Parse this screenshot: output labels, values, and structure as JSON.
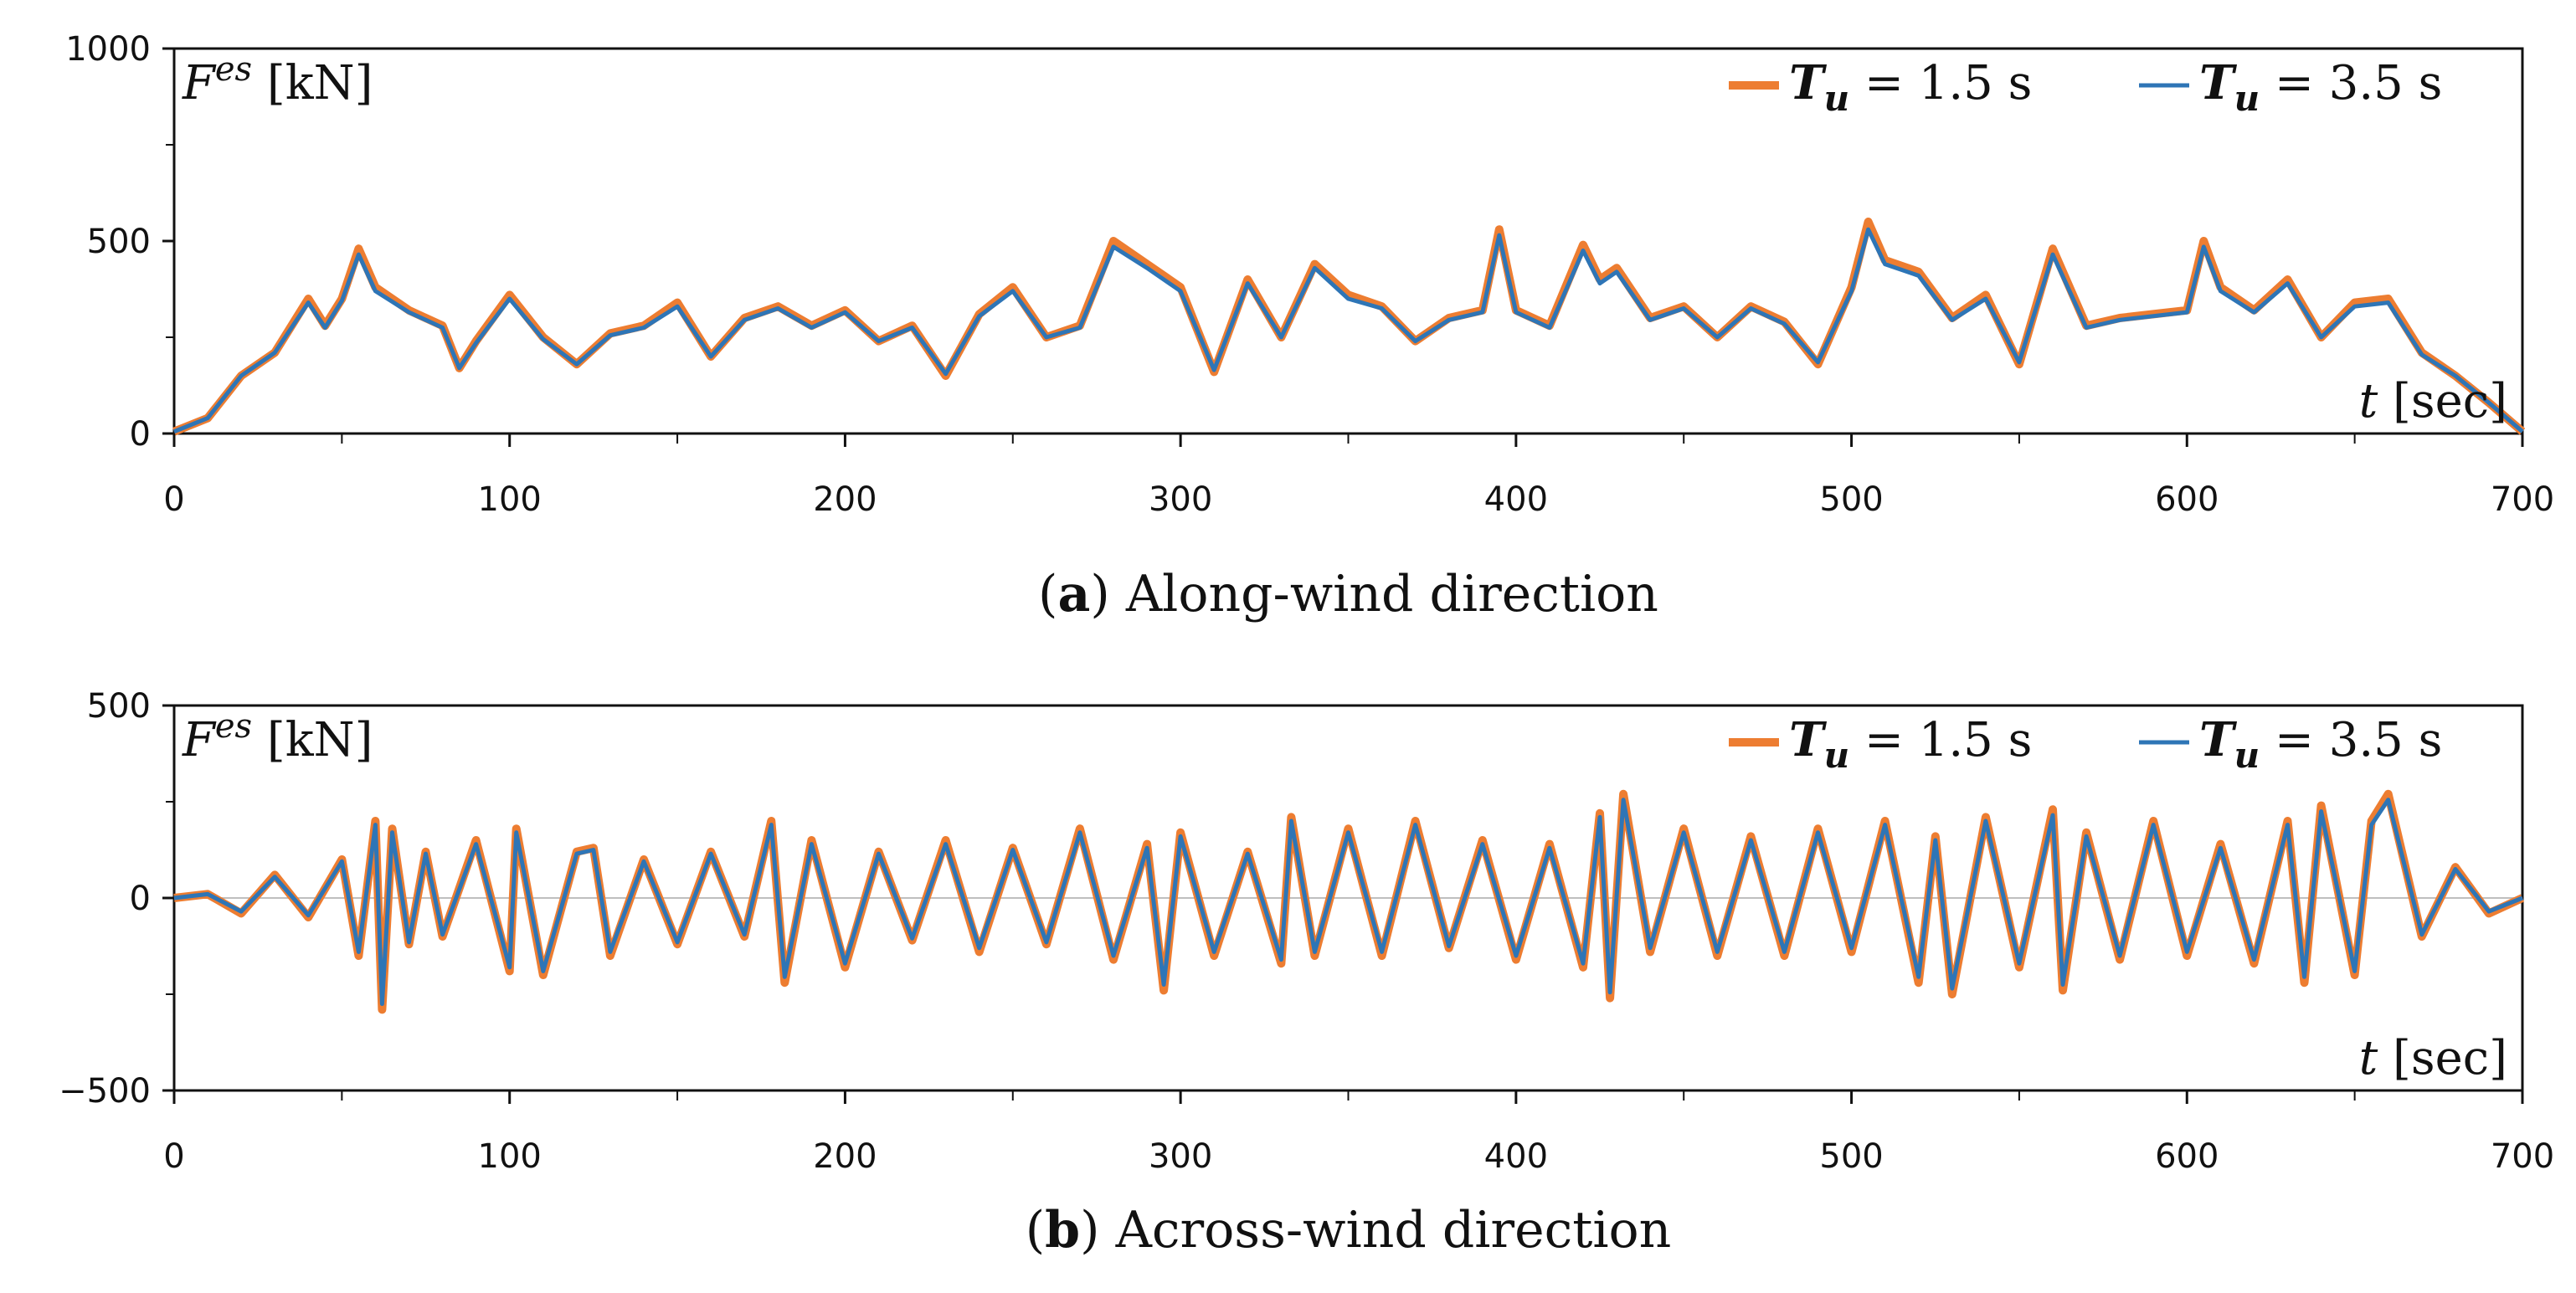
{
  "chart_data": [
    {
      "type": "line",
      "panel": "a",
      "caption_letter": "a",
      "caption_open": "(",
      "caption_close": ")",
      "caption_text": " Along-wind direction",
      "ylabel": {
        "symbol": "F",
        "sup": "es",
        "unit": " [kN]"
      },
      "xlabel": {
        "symbol": "t",
        "unit": " [sec]"
      },
      "xlim": [
        0,
        700
      ],
      "ylim": [
        0,
        1000
      ],
      "xticks": [
        0,
        100,
        200,
        300,
        400,
        500,
        600,
        700
      ],
      "xtick_labels": [
        "0",
        "100",
        "200",
        "300",
        "400",
        "500",
        "600",
        "700"
      ],
      "yticks": [
        0,
        500,
        1000
      ],
      "ytick_labels": [
        "0",
        "500",
        "1000"
      ],
      "grid": false,
      "legend_position": "top-right",
      "series": [
        {
          "name": "Tu = 1.5 s",
          "label_symbol": "T",
          "label_sub": "u",
          "label_text": " = 1.5 s",
          "color": "#ED7D31",
          "x": [
            0,
            10,
            20,
            30,
            40,
            45,
            50,
            55,
            60,
            70,
            80,
            85,
            90,
            100,
            110,
            120,
            130,
            140,
            150,
            160,
            170,
            180,
            190,
            200,
            210,
            220,
            230,
            240,
            250,
            260,
            270,
            280,
            290,
            300,
            310,
            320,
            330,
            340,
            350,
            360,
            370,
            380,
            390,
            395,
            400,
            410,
            420,
            425,
            430,
            440,
            450,
            460,
            470,
            480,
            490,
            500,
            505,
            510,
            520,
            530,
            540,
            550,
            560,
            570,
            580,
            590,
            600,
            605,
            610,
            620,
            630,
            640,
            650,
            660,
            670,
            680,
            690,
            700
          ],
          "values": [
            5,
            40,
            150,
            210,
            350,
            280,
            350,
            480,
            380,
            320,
            280,
            170,
            240,
            360,
            250,
            180,
            260,
            280,
            340,
            200,
            300,
            330,
            280,
            320,
            240,
            280,
            150,
            310,
            380,
            250,
            280,
            500,
            440,
            380,
            160,
            400,
            250,
            440,
            360,
            330,
            240,
            300,
            320,
            530,
            320,
            280,
            490,
            400,
            430,
            300,
            330,
            250,
            330,
            290,
            180,
            380,
            550,
            450,
            420,
            300,
            360,
            180,
            480,
            280,
            300,
            310,
            320,
            500,
            380,
            320,
            400,
            250,
            340,
            350,
            210,
            150,
            80,
            5
          ]
        },
        {
          "name": "Tu = 3.5 s",
          "label_symbol": "T",
          "label_sub": "u",
          "label_text": " = 3.5 s",
          "color": "#2E75B6",
          "x": [
            0,
            10,
            20,
            30,
            40,
            45,
            50,
            55,
            60,
            70,
            80,
            85,
            90,
            100,
            110,
            120,
            130,
            140,
            150,
            160,
            170,
            180,
            190,
            200,
            210,
            220,
            230,
            240,
            250,
            260,
            270,
            280,
            290,
            300,
            310,
            320,
            330,
            340,
            350,
            360,
            370,
            380,
            390,
            395,
            400,
            410,
            420,
            425,
            430,
            440,
            450,
            460,
            470,
            480,
            490,
            500,
            505,
            510,
            520,
            530,
            540,
            550,
            560,
            570,
            580,
            590,
            600,
            605,
            610,
            620,
            630,
            640,
            650,
            660,
            670,
            680,
            690,
            700
          ],
          "values": [
            5,
            40,
            150,
            210,
            340,
            275,
            345,
            465,
            370,
            315,
            275,
            170,
            235,
            350,
            245,
            180,
            255,
            275,
            330,
            200,
            295,
            325,
            275,
            315,
            240,
            275,
            155,
            305,
            370,
            250,
            275,
            485,
            430,
            370,
            165,
            390,
            250,
            430,
            350,
            325,
            240,
            295,
            315,
            515,
            315,
            275,
            475,
            390,
            420,
            295,
            325,
            250,
            325,
            285,
            185,
            370,
            530,
            440,
            410,
            295,
            350,
            185,
            465,
            275,
            295,
            305,
            315,
            485,
            370,
            315,
            390,
            250,
            330,
            340,
            205,
            150,
            80,
            5
          ]
        }
      ]
    },
    {
      "type": "line",
      "panel": "b",
      "caption_letter": "b",
      "caption_open": "(",
      "caption_close": ")",
      "caption_text": " Across-wind direction",
      "ylabel": {
        "symbol": "F",
        "sup": "es",
        "unit": " [kN]"
      },
      "xlabel": {
        "symbol": "t",
        "unit": " [sec]"
      },
      "xlim": [
        0,
        700
      ],
      "ylim": [
        -500,
        500
      ],
      "xticks": [
        0,
        100,
        200,
        300,
        400,
        500,
        600,
        700
      ],
      "xtick_labels": [
        "0",
        "100",
        "200",
        "300",
        "400",
        "500",
        "600",
        "700"
      ],
      "yticks": [
        -500,
        0,
        500
      ],
      "ytick_labels": [
        "−500",
        "0",
        "500"
      ],
      "grid": false,
      "legend_position": "top-right",
      "series": [
        {
          "name": "Tu = 1.5 s",
          "label_symbol": "T",
          "label_sub": "u",
          "label_text": " = 1.5 s",
          "color": "#ED7D31",
          "x": [
            0,
            10,
            20,
            30,
            40,
            50,
            55,
            60,
            62,
            65,
            70,
            75,
            80,
            90,
            100,
            102,
            110,
            120,
            125,
            130,
            140,
            150,
            160,
            170,
            178,
            182,
            190,
            200,
            210,
            220,
            230,
            240,
            250,
            260,
            270,
            280,
            290,
            295,
            300,
            310,
            320,
            330,
            333,
            340,
            350,
            360,
            370,
            380,
            390,
            400,
            410,
            420,
            425,
            428,
            432,
            440,
            450,
            460,
            470,
            480,
            490,
            500,
            510,
            520,
            525,
            530,
            540,
            550,
            560,
            563,
            570,
            580,
            590,
            600,
            610,
            620,
            630,
            635,
            640,
            650,
            655,
            660,
            670,
            680,
            690,
            700
          ],
          "values": [
            0,
            10,
            -40,
            60,
            -50,
            100,
            -150,
            200,
            -290,
            180,
            -120,
            120,
            -100,
            150,
            -190,
            180,
            -200,
            120,
            130,
            -150,
            100,
            -120,
            120,
            -100,
            200,
            -220,
            150,
            -180,
            120,
            -110,
            150,
            -140,
            130,
            -120,
            180,
            -160,
            140,
            -240,
            170,
            -150,
            120,
            -170,
            210,
            -150,
            180,
            -150,
            200,
            -130,
            150,
            -160,
            140,
            -180,
            220,
            -260,
            270,
            -140,
            180,
            -150,
            160,
            -150,
            180,
            -140,
            200,
            -220,
            160,
            -250,
            210,
            -180,
            230,
            -240,
            170,
            -160,
            200,
            -150,
            140,
            -170,
            200,
            -220,
            240,
            -200,
            200,
            270,
            -100,
            80,
            -40,
            0
          ]
        },
        {
          "name": "Tu = 3.5 s",
          "label_symbol": "T",
          "label_sub": "u",
          "label_text": " = 3.5 s",
          "color": "#2E75B6",
          "x": [
            0,
            10,
            20,
            30,
            40,
            50,
            55,
            60,
            62,
            65,
            70,
            75,
            80,
            90,
            100,
            102,
            110,
            120,
            125,
            130,
            140,
            150,
            160,
            170,
            178,
            182,
            190,
            200,
            210,
            220,
            230,
            240,
            250,
            260,
            270,
            280,
            290,
            295,
            300,
            310,
            320,
            330,
            333,
            340,
            350,
            360,
            370,
            380,
            390,
            400,
            410,
            420,
            425,
            428,
            432,
            440,
            450,
            460,
            470,
            480,
            490,
            500,
            510,
            520,
            525,
            530,
            540,
            550,
            560,
            563,
            570,
            580,
            590,
            600,
            610,
            620,
            630,
            635,
            640,
            650,
            655,
            660,
            670,
            680,
            690,
            700
          ],
          "values": [
            0,
            10,
            -35,
            55,
            -45,
            95,
            -140,
            190,
            -275,
            170,
            -115,
            115,
            -95,
            140,
            -180,
            170,
            -190,
            115,
            125,
            -140,
            95,
            -115,
            115,
            -95,
            190,
            -205,
            140,
            -170,
            115,
            -105,
            140,
            -130,
            125,
            -115,
            170,
            -150,
            130,
            -225,
            160,
            -140,
            115,
            -160,
            200,
            -140,
            170,
            -140,
            190,
            -125,
            140,
            -150,
            130,
            -170,
            210,
            -245,
            255,
            -130,
            170,
            -140,
            150,
            -140,
            170,
            -130,
            190,
            -205,
            150,
            -235,
            200,
            -170,
            215,
            -225,
            160,
            -150,
            190,
            -140,
            130,
            -160,
            190,
            -205,
            225,
            -190,
            190,
            255,
            -95,
            75,
            -35,
            0
          ]
        }
      ]
    }
  ]
}
